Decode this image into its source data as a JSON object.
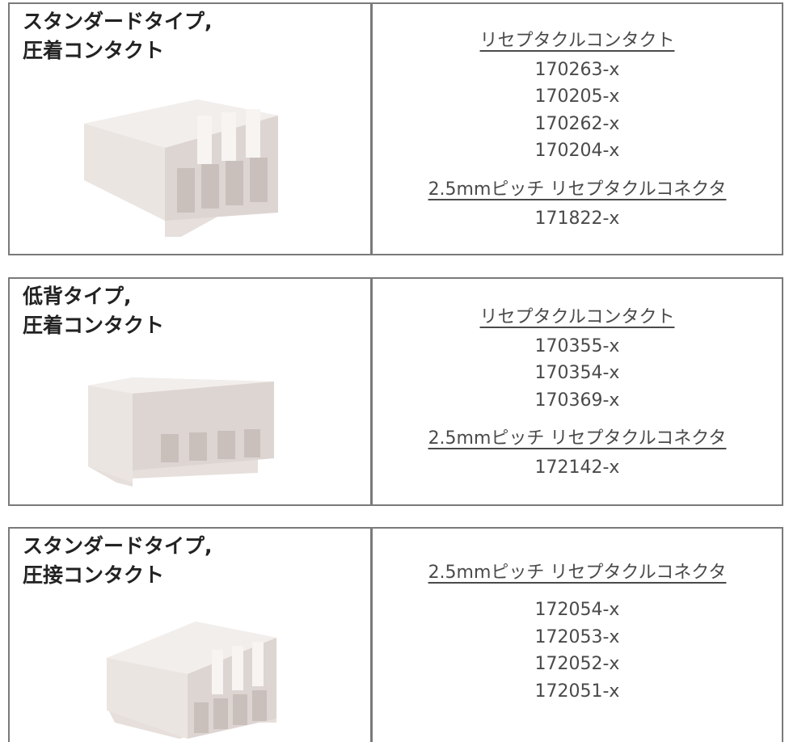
{
  "panels": [
    {
      "title_lines": [
        "スタンダードタイプ,",
        "圧着コンタクト"
      ],
      "sections": [
        {
          "heading": "リセプタクルコンタクト",
          "parts": [
            "170263-x",
            "170205-x",
            "170262-x",
            "170204-x"
          ]
        },
        {
          "heading": "2.5mmピッチ リセプタクルコネクタ",
          "parts": [
            "171822-x"
          ]
        }
      ]
    },
    {
      "title_lines": [
        "低背タイプ,",
        "圧着コンタクト"
      ],
      "sections": [
        {
          "heading": "リセプタクルコンタクト",
          "parts": [
            "170355-x",
            "170354-x",
            "170369-x"
          ]
        },
        {
          "heading": "2.5mmピッチ リセプタクルコネクタ",
          "parts": [
            "172142-x"
          ]
        }
      ]
    },
    {
      "title_lines": [
        "スタンダードタイプ,",
        "圧接コンタクト"
      ],
      "sections": [
        {
          "heading": "2.5mmピッチ リセプタクルコネクタ",
          "parts": [
            "172054-x",
            "172053-x",
            "172052-x",
            "172051-x"
          ]
        }
      ]
    }
  ]
}
